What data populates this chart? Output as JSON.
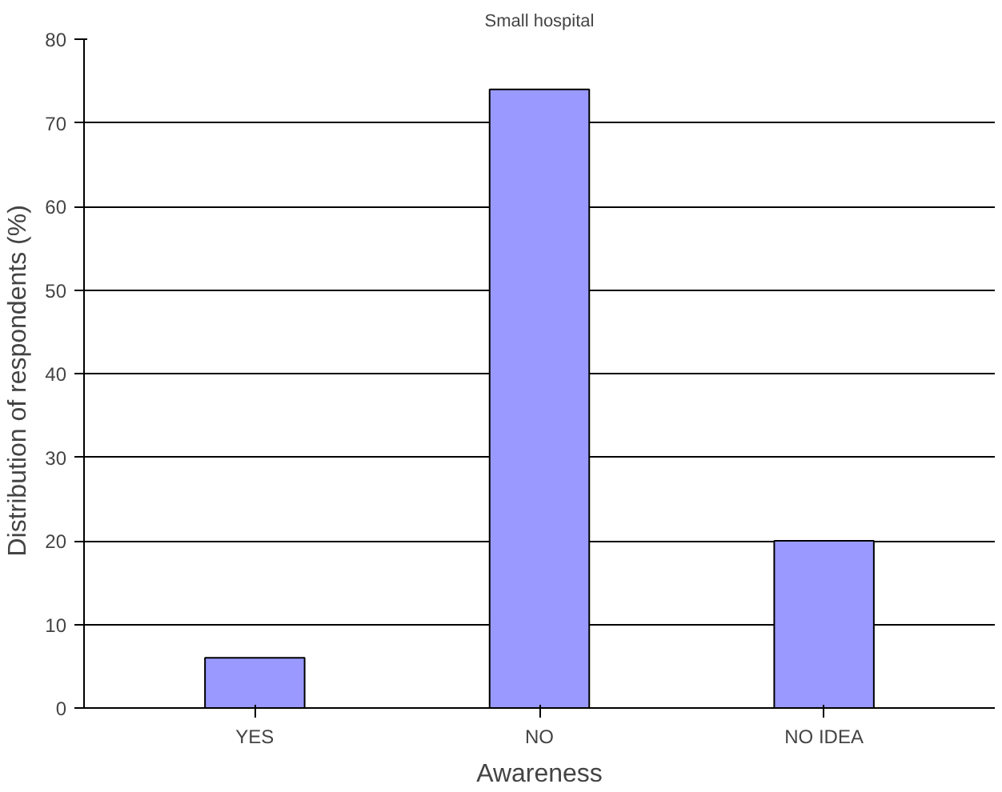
{
  "chart_data": {
    "type": "bar",
    "title": "Small hospital",
    "xlabel": "Awareness",
    "ylabel": "Distribution of respondents   (%)",
    "categories": [
      "YES",
      "NO",
      "NO IDEA"
    ],
    "values": [
      6,
      74,
      20
    ],
    "color": "#9999ff",
    "ylim": [
      0,
      80
    ],
    "yticks": [
      0,
      10,
      20,
      30,
      40,
      50,
      60,
      70,
      80
    ],
    "grid": "y"
  }
}
